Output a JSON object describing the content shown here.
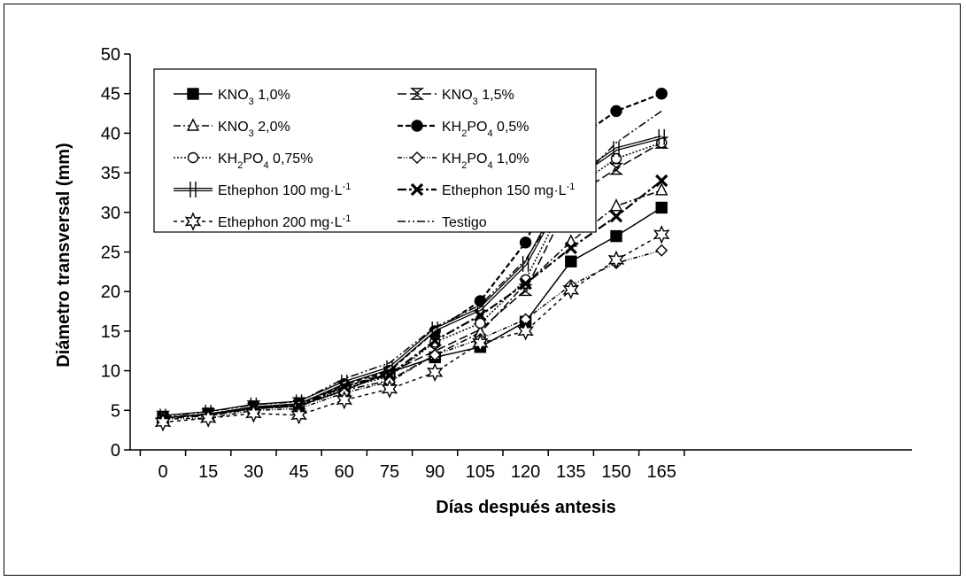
{
  "chart_data": {
    "type": "line",
    "title": "",
    "xlabel": "Días después antesis",
    "ylabel": "Diámetro transversal (mm)",
    "x": [
      0,
      15,
      30,
      45,
      60,
      75,
      90,
      105,
      120,
      135,
      150,
      165
    ],
    "xlim": [
      0,
      165
    ],
    "ylim": [
      0,
      50
    ],
    "yticks": [
      0,
      5,
      10,
      15,
      20,
      25,
      30,
      35,
      40,
      45,
      50
    ],
    "grid": false,
    "legend_position": "top-left",
    "series": [
      {
        "name": "KNO3 1,0%",
        "legend_base": "KNO",
        "legend_sub": "3",
        "legend_rest": " 1,0%",
        "marker": "square",
        "dash": "",
        "values": [
          4.0,
          4.6,
          5.3,
          5.6,
          7.5,
          9.8,
          11.7,
          13.0,
          16.2,
          23.8,
          27.0,
          30.6
        ]
      },
      {
        "name": "KNO3 1,5%",
        "legend_base": "KNO",
        "legend_sub": "3",
        "legend_rest": " 1,5%",
        "marker": "hourglass",
        "dash": "10,4",
        "values": [
          4.2,
          4.5,
          5.5,
          5.9,
          8.0,
          9.8,
          12.5,
          15.2,
          20.2,
          31.8,
          35.5,
          38.8
        ]
      },
      {
        "name": "KNO3 2,0%",
        "legend_base": "KNO",
        "legend_sub": "3",
        "legend_rest": " 2,0%",
        "marker": "triangle",
        "dash": "8,3,2,3",
        "values": [
          4.0,
          4.3,
          5.2,
          5.5,
          7.5,
          8.8,
          12.0,
          14.8,
          21.0,
          26.3,
          30.8,
          32.8
        ]
      },
      {
        "name": "KH2PO4 0,5%",
        "legend_base": "KH",
        "legend_sub": "2",
        "legend_rest": "PO",
        "legend_sub2": "4",
        "legend_rest2": " 0,5%",
        "marker": "dot",
        "dash": "6,3",
        "values": [
          4.1,
          4.5,
          5.4,
          5.8,
          8.3,
          10.0,
          15.0,
          18.8,
          26.2,
          38.8,
          42.8,
          45.0
        ]
      },
      {
        "name": "KH2PO4 0,75%",
        "legend_base": "KH",
        "legend_sub": "2",
        "legend_rest": "PO",
        "legend_sub2": "4",
        "legend_rest2": " 0,75%",
        "marker": "circle",
        "dash": "2,2",
        "values": [
          4.1,
          4.4,
          5.2,
          5.5,
          7.8,
          9.3,
          13.6,
          16.0,
          21.5,
          32.8,
          36.8,
          38.8
        ]
      },
      {
        "name": "KH2PO4 1,0%",
        "legend_base": "KH",
        "legend_sub": "2",
        "legend_rest": "PO",
        "legend_sub2": "4",
        "legend_rest2": " 1,0%",
        "marker": "diamond",
        "dash": "5,2,1,2,1,2",
        "values": [
          3.9,
          4.0,
          5.0,
          5.2,
          7.2,
          8.6,
          12.0,
          14.0,
          16.5,
          20.8,
          23.6,
          25.2
        ]
      },
      {
        "name": "Ethephon 100 mg·L-1",
        "legend_base": "Ethephon 100 mg·L",
        "legend_sup": "-1",
        "marker": "bar",
        "dash": "",
        "double": true,
        "values": [
          4.2,
          4.7,
          5.6,
          6.0,
          8.5,
          10.3,
          15.2,
          17.8,
          23.5,
          34.0,
          38.0,
          39.5
        ]
      },
      {
        "name": "Ethephon 150 mg·L-1",
        "legend_base": "Ethephon 150 mg·L",
        "legend_sup": "-1",
        "marker": "cross",
        "dash": "10,3,3,3",
        "values": [
          4.1,
          4.5,
          5.3,
          5.6,
          8.0,
          9.5,
          13.8,
          17.0,
          21.0,
          25.5,
          29.5,
          34.0
        ]
      },
      {
        "name": "Ethephon 200 mg·L-1",
        "legend_base": "Ethephon 200 mg·L",
        "legend_sup": "-1",
        "marker": "star",
        "dash": "4,4",
        "values": [
          3.5,
          4.0,
          4.6,
          4.4,
          6.3,
          7.7,
          9.8,
          13.5,
          15.0,
          20.2,
          24.0,
          27.2
        ]
      },
      {
        "name": "Testigo",
        "legend_base": "Testigo",
        "marker": "none",
        "dash": "9,3,2,3,2,3",
        "values": [
          4.3,
          4.8,
          5.7,
          6.1,
          9.0,
          11.0,
          15.5,
          18.3,
          24.0,
          33.0,
          38.8,
          42.8
        ]
      }
    ]
  }
}
